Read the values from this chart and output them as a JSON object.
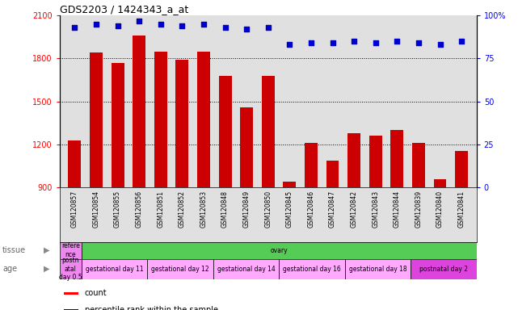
{
  "title": "GDS2203 / 1424343_a_at",
  "samples": [
    "GSM120857",
    "GSM120854",
    "GSM120855",
    "GSM120856",
    "GSM120851",
    "GSM120852",
    "GSM120853",
    "GSM120848",
    "GSM120849",
    "GSM120850",
    "GSM120845",
    "GSM120846",
    "GSM120847",
    "GSM120842",
    "GSM120843",
    "GSM120844",
    "GSM120839",
    "GSM120840",
    "GSM120841"
  ],
  "counts": [
    1230,
    1840,
    1770,
    1960,
    1850,
    1790,
    1850,
    1680,
    1460,
    1680,
    940,
    1210,
    1090,
    1280,
    1260,
    1300,
    1210,
    960,
    1155
  ],
  "percentiles": [
    93,
    95,
    94,
    97,
    95,
    94,
    95,
    93,
    92,
    93,
    83,
    84,
    84,
    85,
    84,
    85,
    84,
    83,
    85
  ],
  "ylim_left": [
    900,
    2100
  ],
  "ylim_right": [
    0,
    100
  ],
  "yticks_left": [
    900,
    1200,
    1500,
    1800,
    2100
  ],
  "yticks_right": [
    0,
    25,
    50,
    75,
    100
  ],
  "bar_color": "#cc0000",
  "dot_color": "#0000cc",
  "bg_color": "#e0e0e0",
  "grid_lines": [
    1200,
    1500,
    1800
  ],
  "tissue_groups": [
    {
      "text": "refere\nnce",
      "color": "#ee88ee",
      "start": 0,
      "end": 1
    },
    {
      "text": "ovary",
      "color": "#55cc55",
      "start": 1,
      "end": 19
    }
  ],
  "age_groups": [
    {
      "text": "postn\natal\nday 0.5",
      "color": "#ee88ee",
      "start": 0,
      "end": 1
    },
    {
      "text": "gestational day 11",
      "color": "#ffaaff",
      "start": 1,
      "end": 4
    },
    {
      "text": "gestational day 12",
      "color": "#ffaaff",
      "start": 4,
      "end": 7
    },
    {
      "text": "gestational day 14",
      "color": "#ffaaff",
      "start": 7,
      "end": 10
    },
    {
      "text": "gestational day 16",
      "color": "#ffaaff",
      "start": 10,
      "end": 13
    },
    {
      "text": "gestational day 18",
      "color": "#ffaaff",
      "start": 13,
      "end": 16
    },
    {
      "text": "postnatal day 2",
      "color": "#dd44dd",
      "start": 16,
      "end": 19
    }
  ],
  "fig_width": 6.41,
  "fig_height": 3.84,
  "dpi": 100
}
